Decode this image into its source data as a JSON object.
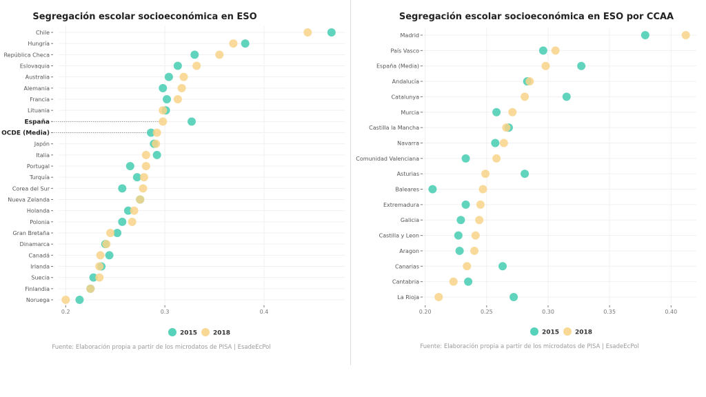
{
  "colors": {
    "2015": "#45CDB2",
    "2018": "#F8D48A"
  },
  "chart_data": [
    {
      "type": "scatter",
      "title": "Segregación escolar socioeconómica en ESO",
      "xlim": [
        0.185,
        0.48
      ],
      "xticks": [
        0.2,
        0.3,
        0.4
      ],
      "xtick_labels": [
        "0.2",
        "0.3",
        "0.4"
      ],
      "grid": true,
      "legend_position": "bottom",
      "source": "Fuente: Elaboración propia a partir de los microdatos de PISA | EsadeEcPol",
      "highlight": [
        "España",
        "OCDE (Media)"
      ],
      "categories": [
        "Chile",
        "Hungría",
        "República Checa",
        "Eslovaquia",
        "Australia",
        "Alemania",
        "Francia",
        "Lituania",
        "España",
        "OCDE (Media)",
        "Japón",
        "Italia",
        "Portugal",
        "Turquía",
        "Corea del Sur",
        "Nueva Zelanda",
        "Holanda",
        "Polonia",
        "Gran Bretaña",
        "Dinamarca",
        "Canadá",
        "Irlanda",
        "Suecia",
        "Finlandia",
        "Noruega"
      ],
      "series": [
        {
          "name": "2015",
          "values": [
            0.468,
            0.381,
            0.33,
            0.313,
            0.304,
            0.298,
            0.302,
            0.301,
            0.327,
            0.286,
            0.289,
            0.292,
            0.265,
            0.272,
            0.257,
            0.275,
            0.263,
            0.257,
            0.252,
            0.24,
            0.244,
            0.236,
            0.228,
            0.225,
            0.214
          ]
        },
        {
          "name": "2018",
          "values": [
            0.444,
            0.369,
            0.355,
            0.332,
            0.319,
            0.317,
            0.313,
            0.298,
            0.298,
            0.292,
            0.291,
            0.281,
            0.281,
            0.279,
            0.278,
            0.275,
            0.269,
            0.267,
            0.245,
            0.241,
            0.235,
            0.234,
            0.234,
            0.225,
            0.2
          ]
        }
      ]
    },
    {
      "type": "scatter",
      "title": "Segregación escolar socioeconómica en ESO por CCAA",
      "xlim": [
        0.195,
        0.415
      ],
      "xticks": [
        0.2,
        0.25,
        0.3,
        0.35,
        0.4
      ],
      "xtick_labels": [
        "0.20",
        "0.25",
        "0.30",
        "0.35",
        "0.40"
      ],
      "grid": true,
      "legend_position": "bottom",
      "source": "Fuente: Elaboración propia a partir de los microdatos de PISA | EsadeEcPol",
      "highlight": [],
      "categories": [
        "Madrid",
        "País Vasco",
        "España (Media)",
        "Andalucía",
        "Catalunya",
        "Murcia",
        "Castilla la Mancha",
        "Navarra",
        "Comunidad Valenciana",
        "Asturias",
        "Baleares",
        "Extremadura",
        "Galicia",
        "Castilla y Leon",
        "Aragon",
        "Canarias",
        "Cantabria",
        "La Rioja"
      ],
      "series": [
        {
          "name": "2015",
          "values": [
            0.379,
            0.296,
            0.327,
            0.283,
            0.315,
            0.258,
            0.268,
            0.257,
            0.233,
            0.281,
            0.206,
            0.233,
            0.229,
            0.227,
            0.228,
            0.263,
            0.235,
            0.272
          ]
        },
        {
          "name": "2018",
          "values": [
            0.412,
            0.306,
            0.298,
            0.285,
            0.281,
            0.271,
            0.266,
            0.264,
            0.258,
            0.249,
            0.247,
            0.245,
            0.244,
            0.241,
            0.24,
            0.234,
            0.223,
            0.211
          ]
        }
      ]
    }
  ]
}
